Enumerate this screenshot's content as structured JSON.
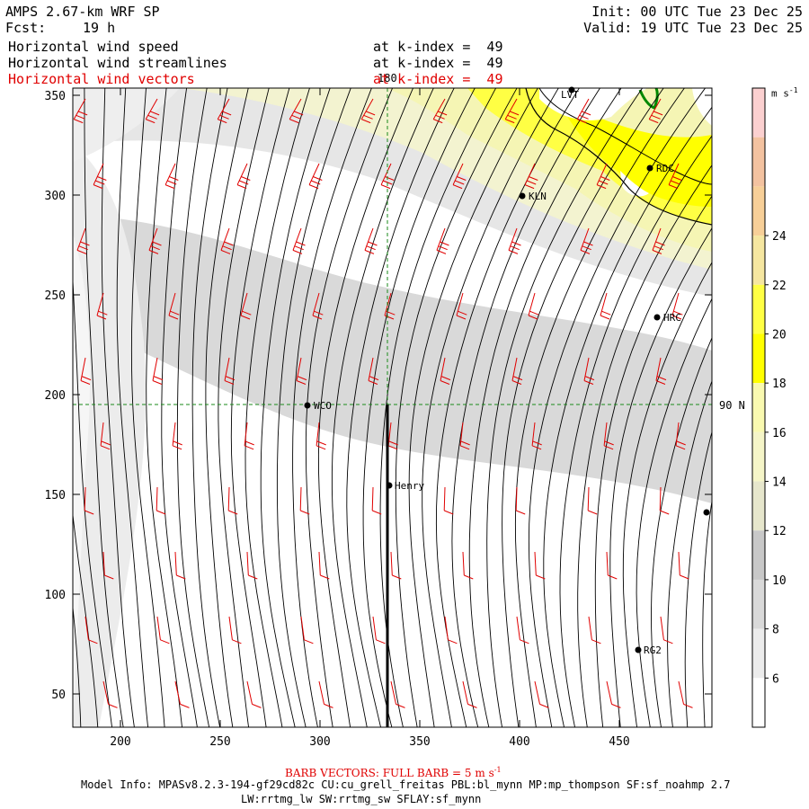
{
  "header": {
    "model_title": "AMPS 2.67-km WRF SP",
    "fcst_label": "Fcst:",
    "fcst_value": "19 h",
    "init": "Init: 00 UTC Tue 23 Dec 25",
    "valid": "Valid: 19 UTC Tue 23 Dec 25",
    "fields": [
      {
        "name": "Horizontal wind speed",
        "level": "at k-index =  49"
      },
      {
        "name": "Horizontal wind streamlines",
        "level": "at k-index =  49"
      },
      {
        "name": "Horizontal wind vectors",
        "level": "at k-index =  49"
      }
    ]
  },
  "colorbar": {
    "unit": "m s",
    "unit_exp": "-1",
    "tick_labels": [
      "6",
      "8",
      "10",
      "12",
      "14",
      "16",
      "18",
      "20",
      "22",
      "24"
    ],
    "colors": [
      "#ffffff",
      "#ececec",
      "#d9d9d9",
      "#c8c8c8",
      "#e6e6cc",
      "#f5f5c8",
      "#f9f9b0",
      "#ffff00",
      "#ffff44",
      "#f5e6a0",
      "#f7cf98",
      "#f3c2a0",
      "#fbd0d0"
    ]
  },
  "axes": {
    "x_ticks": [
      "200",
      "250",
      "300",
      "350",
      "400",
      "450"
    ],
    "y_ticks": [
      "350",
      "300",
      "250",
      "200",
      "150",
      "100",
      "50"
    ],
    "grid_label_lon": "180",
    "grid_label_lat": "90 N"
  },
  "stations": [
    {
      "id": "LVT",
      "label": "LVT"
    },
    {
      "id": "RDC",
      "label": "RDC"
    },
    {
      "id": "KLN",
      "label": "KLN"
    },
    {
      "id": "HRC",
      "label": "HRC"
    },
    {
      "id": "WCO",
      "label": "WCO"
    },
    {
      "id": "Henry",
      "label": "Henry"
    },
    {
      "id": "RG2",
      "label": "RG2"
    },
    {
      "id": "edge",
      "label": ""
    }
  ],
  "footer": {
    "barb_note": "BARB VECTORS: FULL BARB = 5 m s",
    "barb_exp": "-1",
    "model_info": "Model Info: MPASv8.2.3-194-gf29cd82c CU:cu_grell_freitas PBL:bl_mynn MP:mp_thompson SF:sf_noahmp 2.7",
    "model_info2": "LW:rrtmg_lw SW:rrtmg_sw SFLAY:sf_mynn"
  }
}
